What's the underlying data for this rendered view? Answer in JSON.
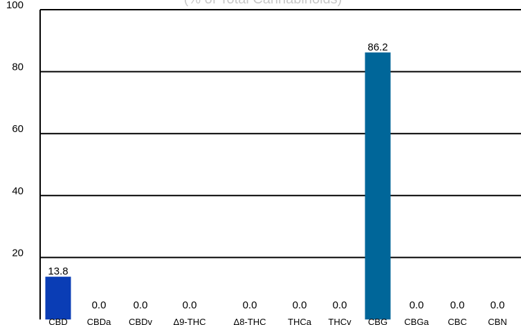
{
  "chart_data": {
    "type": "bar",
    "subtitle": "(% of Total Cannabinoids)",
    "categories": [
      "CBD",
      "CBDa",
      "CBDv",
      "Δ9-THC",
      "Δ8-THC",
      "THCa",
      "THCv",
      "CBG",
      "CBGa",
      "CBC",
      "CBN"
    ],
    "values": [
      13.8,
      0.0,
      0.0,
      0.0,
      0.0,
      0.0,
      0.0,
      86.2,
      0.0,
      0.0,
      0.0
    ],
    "data_labels": [
      "13.8",
      "0.0",
      "0.0",
      "0.0",
      "0.0",
      "0.0",
      "0.0",
      "86.2",
      "0.0",
      "0.0",
      "0.0"
    ],
    "y_ticks": [
      "20",
      "40",
      "60",
      "80",
      "100"
    ],
    "ylim": [
      0,
      100
    ],
    "grid": true,
    "colors": {
      "CBD": "#0a3db5",
      "CBG": "#006699",
      "default": "#006699",
      "grid": "#000000"
    }
  }
}
